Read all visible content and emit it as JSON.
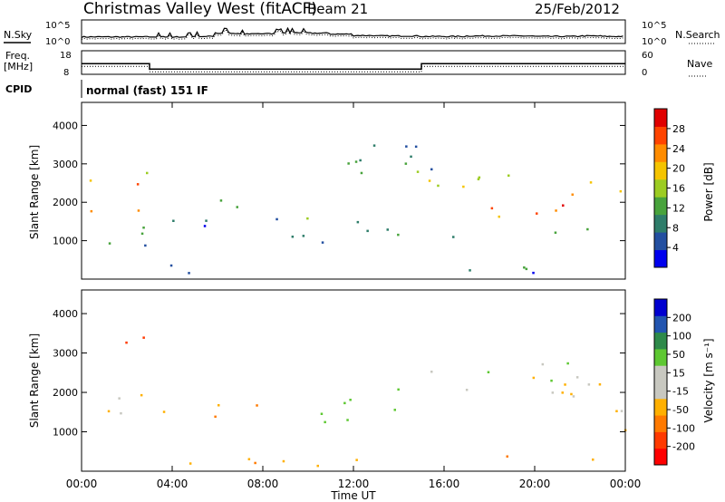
{
  "header": {
    "title": "Christmas Valley West (fitACF)",
    "beam": "Beam 21",
    "date": "25/Feb/2012"
  },
  "panels": {
    "nsky_label": "N.Sky",
    "nsearch_label": "N.Search",
    "freq_label": "Freq.",
    "freq_unit": "[MHz]",
    "nave_label": "Nave",
    "cpid_label": "CPID",
    "cpid_value": "normal (fast) 151 IF",
    "nsky_ticks": [
      "10^5",
      "10^0"
    ],
    "nsearch_ticks": [
      "10^5",
      "10^0"
    ],
    "freq_ticks": [
      "18",
      "8"
    ],
    "nave_ticks": [
      "60",
      "0"
    ]
  },
  "colorbars": {
    "power": {
      "label": "Power [dB]",
      "ticks": [
        "28",
        "24",
        "20",
        "16",
        "12",
        "8",
        "4"
      ],
      "colors": [
        "#0000ee",
        "#234fa0",
        "#2e7d6a",
        "#48a33c",
        "#9ccc22",
        "#f5c400",
        "#ff8c00",
        "#ff4400",
        "#e00000"
      ]
    },
    "velocity": {
      "label": "Velocity [m s⁻¹]",
      "ticks": [
        "200",
        "100",
        "50",
        "15",
        "-15",
        "-50",
        "-100",
        "-200"
      ],
      "colors": [
        "#ff0000",
        "#ff3a00",
        "#ff7a00",
        "#ffb000",
        "#c8c8c0",
        "#c8c8c0",
        "#5ec832",
        "#2e8a4a",
        "#2255b0",
        "#0000d0"
      ]
    }
  },
  "chart_data": [
    {
      "type": "line",
      "name": "n-sky-n-search",
      "x_range": [
        "00:00",
        "24:00"
      ],
      "ylim_log10": [
        0,
        5
      ],
      "series": [
        {
          "values_log10": [
            1.4,
            1.4,
            1.4,
            1.4,
            1.4,
            1.5,
            2.2,
            2.0,
            2.1,
            2.3,
            2.2,
            2.0,
            1.7,
            1.6,
            1.6,
            1.5,
            1.5,
            1.6,
            1.6,
            1.6,
            1.5,
            1.5,
            1.6,
            1.5,
            1.6
          ]
        }
      ]
    },
    {
      "type": "line",
      "name": "frequency-nave",
      "x": [
        "00:00",
        "03:00",
        "03:00",
        "15:00",
        "15:00",
        "24:00"
      ],
      "series": [
        {
          "values": [
            12.5,
            12.5,
            10.2,
            10.2,
            12.5,
            12.5
          ]
        }
      ],
      "ylim": [
        8,
        18
      ]
    },
    {
      "type": "heatmap",
      "name": "power",
      "xlabel": "",
      "ylabel": "Slant Range [km]",
      "x_range": [
        "00:00",
        "24:00"
      ],
      "ylim": [
        0,
        4600
      ],
      "yticks": [
        1000,
        2000,
        3000,
        4000
      ],
      "regions": [
        {
          "t_start": 0.0,
          "t_end": 3.0,
          "r_low": 900,
          "r_high": 3600,
          "peak_db": 28
        },
        {
          "t_start": 3.0,
          "t_end": 7.0,
          "r_low": 1300,
          "r_high": 2400,
          "peak_db": 14
        },
        {
          "t_start": 7.0,
          "t_end": 9.5,
          "r_low": 1100,
          "r_high": 1700,
          "peak_db": 16
        },
        {
          "t_start": 9.5,
          "t_end": 15.0,
          "r_low": 900,
          "r_high": 3600,
          "peak_db": 20
        },
        {
          "t_start": 15.3,
          "t_end": 24.0,
          "r_low": 1000,
          "r_high": 2900,
          "peak_db": 30
        },
        {
          "t_start": 0.0,
          "t_end": 24.0,
          "r_low": 180,
          "r_high": 420,
          "peak_db": 10
        }
      ]
    },
    {
      "type": "heatmap",
      "name": "velocity",
      "xlabel": "Time UT",
      "ylabel": "Slant Range [km]",
      "x_range": [
        "00:00",
        "24:00"
      ],
      "xticks": [
        "00:00",
        "04:00",
        "08:00",
        "12:00",
        "16:00",
        "20:00",
        "00:00"
      ],
      "ylim": [
        0,
        4600
      ],
      "yticks": [
        1000,
        2000,
        3000,
        4000
      ],
      "regions": [
        {
          "t_start": 0.0,
          "t_end": 3.0,
          "r_low": 900,
          "r_high": 2200,
          "velocity": 0
        },
        {
          "t_start": 1.5,
          "t_end": 3.2,
          "r_low": 2800,
          "r_high": 3600,
          "velocity": -150
        },
        {
          "t_start": 3.0,
          "t_end": 8.0,
          "r_low": 1300,
          "r_high": 2000,
          "velocity": -40
        },
        {
          "t_start": 10.0,
          "t_end": 14.5,
          "r_low": 1200,
          "r_high": 2600,
          "velocity": 40
        },
        {
          "t_start": 15.2,
          "t_end": 24.0,
          "r_low": 1000,
          "r_high": 2800,
          "velocity": 0
        },
        {
          "t_start": 0.0,
          "t_end": 24.0,
          "r_low": 150,
          "r_high": 450,
          "velocity": -40
        }
      ]
    }
  ]
}
